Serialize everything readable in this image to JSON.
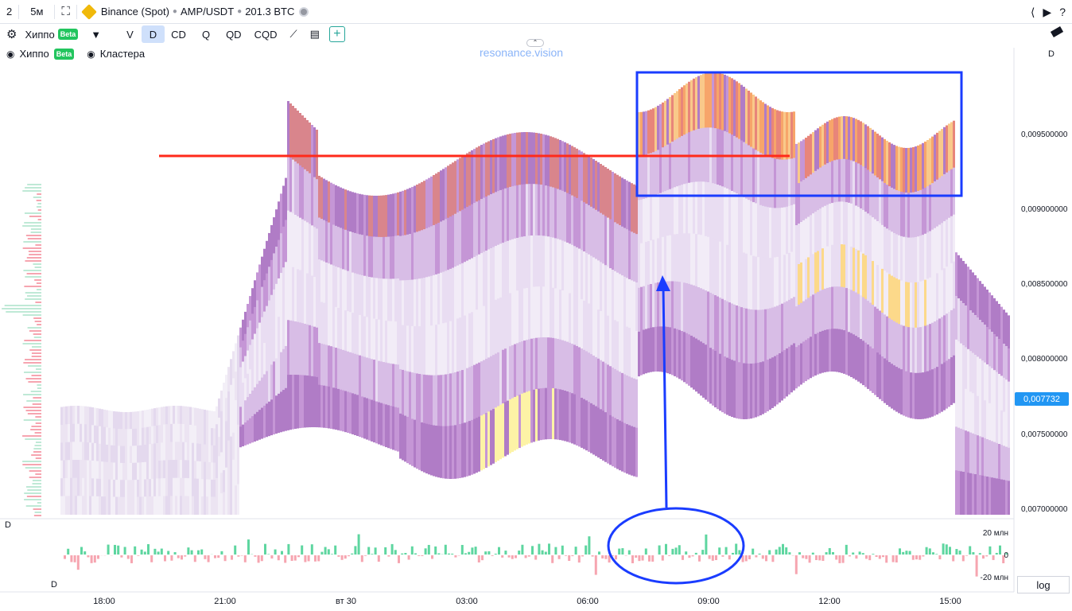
{
  "header": {
    "layout_number": "2",
    "interval": "5м",
    "exchange": "Binance (Spot)",
    "symbol": "AMP/USDT",
    "volume": "201.3 BTC"
  },
  "toolbar": {
    "indicator_name": "Хиппо",
    "beta_label": "Beta",
    "modes": [
      "V",
      "D",
      "CD",
      "Q",
      "QD",
      "CQD"
    ],
    "active_mode": "D",
    "add_label": "+"
  },
  "legend": {
    "item1": "Хиппо",
    "item1_beta": "Beta",
    "item2": "Кластера"
  },
  "watermark": "resonance.vision",
  "price_axis": {
    "header": "D",
    "ticks": [
      "0,009500000",
      "0,009000000",
      "0,008500000",
      "0,008000000",
      "0,007500000",
      "0,007000000"
    ],
    "current_price": "0,007732"
  },
  "sub_pane": {
    "title": "D",
    "footer_label": "D",
    "ticks": [
      "20 млн",
      "0",
      "-20 млн"
    ]
  },
  "time_axis": {
    "labels": [
      "18:00",
      "21:00",
      "вт 30",
      "03:00",
      "06:00",
      "09:00",
      "12:00",
      "15:00"
    ]
  },
  "log_label": "log",
  "colors": {
    "accent": "#2196f3",
    "annotation_blue": "#1a3cff",
    "annotation_red": "#ff2a1a",
    "buy": "#5ed6a0",
    "sell": "#f6a5b0"
  }
}
